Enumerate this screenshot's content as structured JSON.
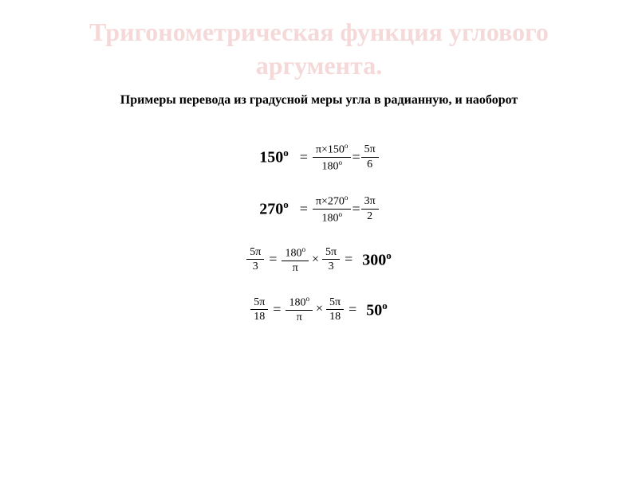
{
  "title": "Тригонометрическая функция углового аргумента.",
  "subtitle": "Примеры перевода из градусной меры угла в радианную, и наоборот",
  "colors": {
    "title_color": "#f5d9d9",
    "text_color": "#000000",
    "background": "#ffffff"
  },
  "typography": {
    "title_fontsize": 32,
    "subtitle_fontsize": 16,
    "equation_fontsize": 18,
    "bold_fontsize": 20,
    "frac_fontsize": 14
  },
  "equations": [
    {
      "lhs": "150°",
      "lhs_bold": true,
      "step_num": "π×150°",
      "step_den": "180°",
      "equals_sep": "=",
      "rhs_num": "5π",
      "rhs_den": "6",
      "rhs_bold": false
    },
    {
      "lhs": "270°",
      "lhs_bold": true,
      "step_num": "π×270°",
      "step_den": "180°",
      "equals_sep": "=",
      "rhs_num": "3π",
      "rhs_den": "2",
      "rhs_bold": false
    },
    {
      "lhs_num": "5π",
      "lhs_den": "3",
      "lhs_bold": false,
      "step1_num": "180°",
      "step1_den": "π",
      "times": "×",
      "step2_num": "5π",
      "step2_den": "3",
      "rhs": "300°",
      "rhs_bold": true
    },
    {
      "lhs_num": "5π",
      "lhs_den": "18",
      "lhs_bold": false,
      "step1_num": "180°",
      "step1_den": "π",
      "times": "×",
      "step2_num": "5π",
      "step2_den": "18",
      "rhs": "50°",
      "rhs_bold": true
    }
  ]
}
